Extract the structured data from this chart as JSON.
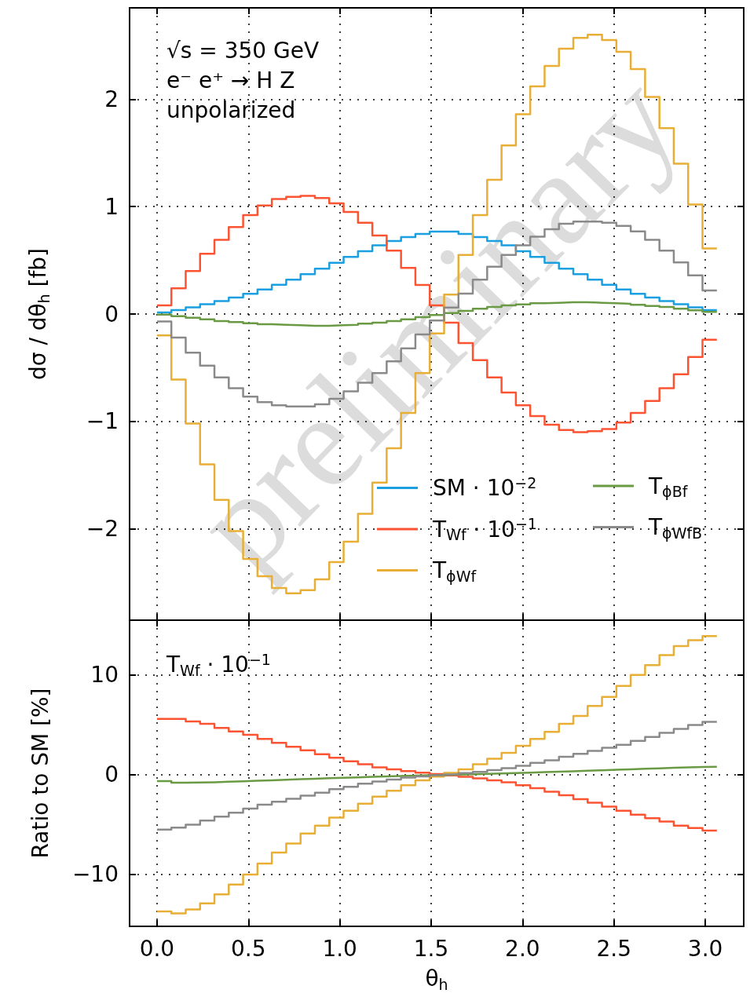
{
  "chart_data": [
    {
      "type": "histogram",
      "ylabel": "dσ / dθ$_{h}$ [fb]",
      "annotations": [
        "√s = 350 GeV",
        "e⁻ e⁺ → H Z",
        "unpolarized",
        "preliminary"
      ],
      "bins": [
        0,
        0.0785,
        0.1571,
        0.2356,
        0.3142,
        0.3927,
        0.4712,
        0.5498,
        0.6283,
        0.7069,
        0.7854,
        0.8639,
        0.9425,
        1.021,
        1.0996,
        1.1781,
        1.2566,
        1.3352,
        1.4137,
        1.4923,
        1.5708,
        1.6493,
        1.7279,
        1.8064,
        1.885,
        1.9635,
        2.042,
        2.1206,
        2.1991,
        2.2777,
        2.3562,
        2.4347,
        2.5133,
        2.5918,
        2.6704,
        2.7489,
        2.8274,
        2.906,
        2.9845,
        3.0631
      ],
      "series": [
        {
          "name": "SM · 10$^{−2}$",
          "color": "#1a9fe0",
          "values": [
            0.015,
            0.036,
            0.062,
            0.091,
            0.12,
            0.153,
            0.189,
            0.229,
            0.273,
            0.32,
            0.371,
            0.422,
            0.476,
            0.531,
            0.585,
            0.64,
            0.68,
            0.716,
            0.745,
            0.767,
            0.767,
            0.745,
            0.716,
            0.68,
            0.64,
            0.585,
            0.531,
            0.476,
            0.422,
            0.371,
            0.32,
            0.273,
            0.229,
            0.189,
            0.153,
            0.12,
            0.091,
            0.062,
            0.036
          ]
        },
        {
          "name": "T$_{Wf}$ · 10$^{−1}$",
          "color": "#fc5432",
          "values": [
            0.08,
            0.24,
            0.4,
            0.56,
            0.69,
            0.81,
            0.92,
            1.01,
            1.07,
            1.09,
            1.1,
            1.08,
            1.03,
            0.95,
            0.85,
            0.73,
            0.59,
            0.43,
            0.27,
            0.08,
            -0.08,
            -0.27,
            -0.43,
            -0.59,
            -0.73,
            -0.85,
            -0.95,
            -1.03,
            -1.08,
            -1.1,
            -1.09,
            -1.07,
            -1.01,
            -0.92,
            -0.81,
            -0.69,
            -0.56,
            -0.4,
            -0.24
          ]
        },
        {
          "name": "T$_{ϕWf}$",
          "color": "#e8ae35",
          "values": [
            -0.2,
            -0.61,
            -1.02,
            -1.4,
            -1.73,
            -2.02,
            -2.28,
            -2.44,
            -2.55,
            -2.6,
            -2.57,
            -2.47,
            -2.31,
            -2.12,
            -1.86,
            -1.57,
            -1.25,
            -0.92,
            -0.55,
            -0.18,
            0.18,
            0.55,
            0.92,
            1.25,
            1.57,
            1.86,
            2.12,
            2.31,
            2.47,
            2.57,
            2.6,
            2.55,
            2.44,
            2.28,
            2.02,
            1.73,
            1.4,
            1.02,
            0.61
          ]
        },
        {
          "name": "T$_{ϕBf}$",
          "color": "#6b9a44",
          "values": [
            -0.005,
            -0.02,
            -0.035,
            -0.05,
            -0.065,
            -0.075,
            -0.085,
            -0.095,
            -0.1,
            -0.105,
            -0.11,
            -0.11,
            -0.105,
            -0.1,
            -0.09,
            -0.08,
            -0.065,
            -0.05,
            -0.03,
            -0.01,
            0.01,
            0.03,
            0.05,
            0.065,
            0.08,
            0.09,
            0.1,
            0.105,
            0.11,
            0.11,
            0.105,
            0.1,
            0.095,
            0.085,
            0.075,
            0.065,
            0.05,
            0.035,
            0.02
          ]
        },
        {
          "name": "T$_{ϕWfB}$",
          "color": "#8a8a8a",
          "values": [
            -0.07,
            -0.22,
            -0.36,
            -0.48,
            -0.59,
            -0.69,
            -0.77,
            -0.82,
            -0.85,
            -0.86,
            -0.86,
            -0.84,
            -0.79,
            -0.72,
            -0.64,
            -0.55,
            -0.44,
            -0.32,
            -0.19,
            -0.06,
            0.06,
            0.19,
            0.32,
            0.44,
            0.55,
            0.64,
            0.72,
            0.79,
            0.84,
            0.86,
            0.86,
            0.85,
            0.82,
            0.77,
            0.69,
            0.59,
            0.48,
            0.36,
            0.22
          ]
        }
      ],
      "xlim": [
        -0.15,
        3.21
      ],
      "xticks": [
        0,
        0.5,
        1,
        1.5,
        2,
        2.5,
        3
      ],
      "ylim": [
        -2.85,
        2.85
      ],
      "yticks": [
        {
          "value": -2,
          "label": "−2"
        },
        {
          "value": -1,
          "label": "−1"
        },
        0,
        1,
        2
      ],
      "tick_labels": "y",
      "grid": true,
      "legend": "bottom right"
    },
    {
      "type": "histogram",
      "xlabel": "θ$_{h}$",
      "ylabel": "Ratio to SM [%]",
      "annotations": [
        "T$_{Wf}$ · 10$^{−1}$"
      ],
      "bins": [
        0,
        0.0785,
        0.1571,
        0.2356,
        0.3142,
        0.3927,
        0.4712,
        0.5498,
        0.6283,
        0.7069,
        0.7854,
        0.8639,
        0.9425,
        1.021,
        1.0996,
        1.1781,
        1.2566,
        1.3352,
        1.4137,
        1.4923,
        1.5708,
        1.6493,
        1.7279,
        1.8064,
        1.885,
        1.9635,
        2.042,
        2.1206,
        2.1991,
        2.2777,
        2.3562,
        2.4347,
        2.5133,
        2.5918,
        2.6704,
        2.7489,
        2.8274,
        2.906,
        2.9845,
        3.0631
      ],
      "series": [
        {
          "color": "#fc5432",
          "values": [
            5.6,
            5.6,
            5.35,
            5.1,
            4.7,
            4.35,
            4.0,
            3.6,
            3.2,
            2.8,
            2.45,
            2.05,
            1.7,
            1.35,
            1.05,
            0.75,
            0.55,
            0.37,
            0.2,
            0.07,
            -0.07,
            -0.2,
            -0.37,
            -0.55,
            -0.75,
            -1.05,
            -1.35,
            -1.7,
            -2.05,
            -2.45,
            -2.8,
            -3.2,
            -3.6,
            -4.0,
            -4.35,
            -4.7,
            -5.1,
            -5.35,
            -5.6
          ]
        },
        {
          "color": "#e8ae35",
          "values": [
            -13.7,
            -13.9,
            -13.5,
            -12.9,
            -12.0,
            -11.0,
            -10.0,
            -8.9,
            -7.8,
            -6.9,
            -5.9,
            -5.1,
            -4.3,
            -3.6,
            -2.9,
            -2.2,
            -1.6,
            -1.05,
            -0.55,
            -0.18,
            0.18,
            0.55,
            1.05,
            1.6,
            2.2,
            2.9,
            3.6,
            4.3,
            5.1,
            5.9,
            6.9,
            7.8,
            8.9,
            10.0,
            11.0,
            12.0,
            12.9,
            13.5,
            13.9
          ]
        },
        {
          "color": "#6b9a44",
          "values": [
            -0.63,
            -0.79,
            -0.78,
            -0.75,
            -0.7,
            -0.65,
            -0.6,
            -0.55,
            -0.5,
            -0.45,
            -0.4,
            -0.35,
            -0.3,
            -0.26,
            -0.21,
            -0.17,
            -0.13,
            -0.09,
            -0.05,
            -0.02,
            0.02,
            0.05,
            0.09,
            0.13,
            0.17,
            0.21,
            0.26,
            0.3,
            0.35,
            0.4,
            0.45,
            0.5,
            0.55,
            0.6,
            0.65,
            0.7,
            0.75,
            0.78,
            0.79
          ]
        },
        {
          "color": "#8a8a8a",
          "values": [
            -5.5,
            -5.3,
            -5.0,
            -4.6,
            -4.2,
            -3.8,
            -3.4,
            -3.0,
            -2.7,
            -2.4,
            -2.1,
            -1.8,
            -1.45,
            -1.2,
            -0.9,
            -0.67,
            -0.47,
            -0.28,
            -0.16,
            -0.04,
            0.04,
            0.16,
            0.28,
            0.47,
            0.67,
            0.9,
            1.2,
            1.45,
            1.8,
            2.1,
            2.4,
            2.7,
            3.0,
            3.4,
            3.8,
            4.2,
            4.6,
            5.0,
            5.3
          ]
        }
      ],
      "xlim": [
        -0.15,
        3.21
      ],
      "xticks": [
        {
          "value": 0,
          "label": "0.0"
        },
        {
          "value": 0.5,
          "label": "0.5"
        },
        {
          "value": 1,
          "label": "1.0"
        },
        {
          "value": 1.5,
          "label": "1.5"
        },
        {
          "value": 2,
          "label": "2.0"
        },
        {
          "value": 2.5,
          "label": "2.5"
        },
        {
          "value": 3,
          "label": "3.0"
        }
      ],
      "ylim": [
        -15.2,
        15.5
      ],
      "yticks": [
        {
          "value": -10,
          "label": "−10"
        },
        0,
        10
      ],
      "grid": true
    }
  ]
}
